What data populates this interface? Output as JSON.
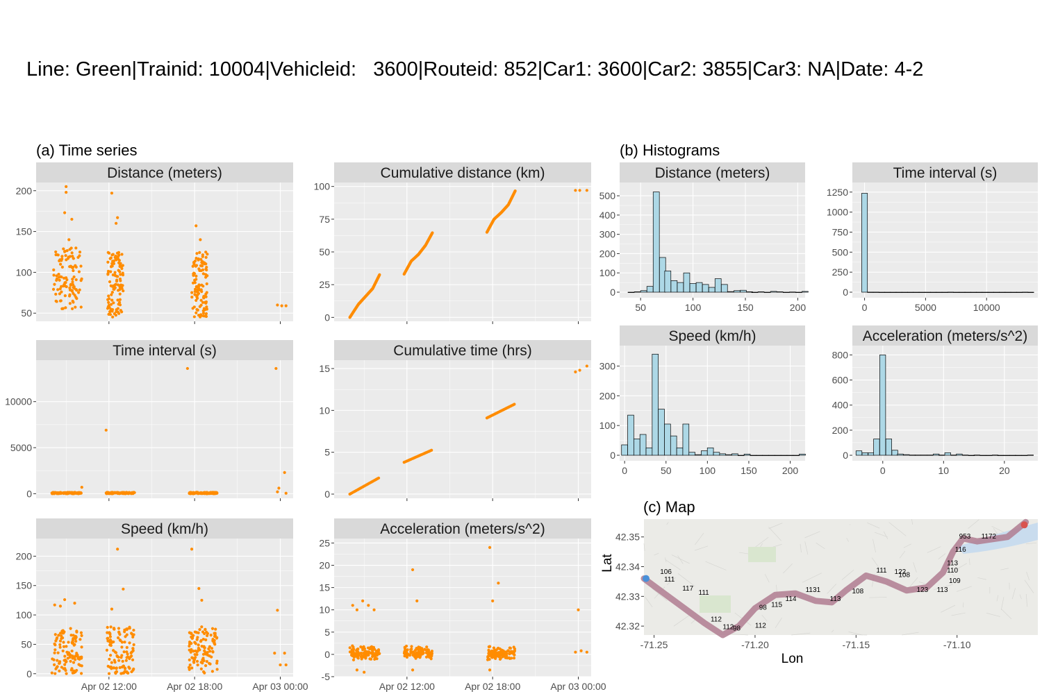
{
  "figure": {
    "title": "Line: Green|Trainid: 10004|Vehicleid:   3600|Routeid: 852|Car1: 3600|Car2: 3855|Car3: NA|Date: 4-2",
    "section_a": "(a) Time series",
    "section_b": "(b) Histograms",
    "section_c": "(c) Map"
  },
  "colors": {
    "points": "#FF8C00",
    "bars": "#ADD8E6",
    "panel_bg": "#EBEBEB",
    "strip_bg": "#D9D9D9",
    "route": "#B07C91",
    "start": "#4A90D9",
    "end": "#D9534F"
  },
  "chart_data": [
    {
      "type": "scatter",
      "title": "Distance (meters)",
      "x_ticks": [
        "Apr 02 12:00",
        "Apr 02 18:00",
        "Apr 03 00:00"
      ],
      "ylim": [
        40,
        210
      ],
      "y_ticks": [
        50,
        100,
        150,
        200
      ],
      "x_unit": "hours since Apr 02 00:00",
      "clusters": [
        {
          "x": [
            8.1,
            10.1
          ],
          "y": [
            55,
            130
          ]
        },
        {
          "x": [
            11.9,
            13.0
          ],
          "y": [
            45,
            125
          ]
        },
        {
          "x": [
            17.8,
            18.9
          ],
          "y": [
            45,
            125
          ]
        }
      ],
      "outliers": [
        [
          9.0,
          205
        ],
        [
          9.0,
          198
        ],
        [
          8.9,
          173
        ],
        [
          9.4,
          165
        ],
        [
          9.2,
          140
        ],
        [
          12.2,
          197
        ],
        [
          12.6,
          167
        ],
        [
          12.5,
          160
        ],
        [
          18.1,
          157
        ],
        [
          18.4,
          140
        ],
        [
          23.8,
          60
        ],
        [
          24.1,
          59
        ],
        [
          24.4,
          59
        ]
      ]
    },
    {
      "type": "scatter",
      "title": "Cumulative distance (km)",
      "x_ticks": [
        "Apr 02 12:00",
        "Apr 02 18:00",
        "Apr 03 00:00"
      ],
      "ylim": [
        -3,
        103
      ],
      "y_ticks": [
        0,
        25,
        50,
        75,
        100
      ],
      "x_unit": "hours since Apr 02 00:00",
      "segments": [
        {
          "x": [
            8.0,
            8.6,
            9.1,
            9.6,
            10.1
          ],
          "y": [
            0,
            10,
            16,
            22,
            33
          ]
        },
        {
          "x": [
            11.8,
            12.3,
            12.8,
            13.3,
            13.8
          ],
          "y": [
            33,
            43,
            48,
            55,
            65
          ]
        },
        {
          "x": [
            17.6,
            18.1,
            18.6,
            19.1,
            19.6
          ],
          "y": [
            65,
            75,
            80,
            86,
            97
          ]
        }
      ],
      "outliers": [
        [
          23.8,
          97
        ],
        [
          24.1,
          97
        ],
        [
          24.6,
          97
        ]
      ]
    },
    {
      "type": "scatter",
      "title": "Time interval (s)",
      "x_ticks": [
        "Apr 02 12:00",
        "Apr 02 18:00",
        "Apr 03 00:00"
      ],
      "ylim": [
        -500,
        14500
      ],
      "y_ticks": [
        0,
        5000,
        10000
      ],
      "x_unit": "hours since Apr 02 00:00",
      "clusters": [
        {
          "x": [
            8.0,
            10.1
          ],
          "y": [
            0,
            150
          ]
        },
        {
          "x": [
            11.8,
            13.8
          ],
          "y": [
            0,
            150
          ]
        },
        {
          "x": [
            17.6,
            19.6
          ],
          "y": [
            0,
            150
          ]
        }
      ],
      "outliers": [
        [
          11.8,
          6900
        ],
        [
          10.1,
          700
        ],
        [
          17.5,
          13600
        ],
        [
          23.7,
          13600
        ],
        [
          23.9,
          600
        ],
        [
          24.3,
          2300
        ],
        [
          23.8,
          200
        ],
        [
          24.4,
          50
        ]
      ]
    },
    {
      "type": "scatter",
      "title": "Cumulative time (hrs)",
      "x_ticks": [
        "Apr 02 12:00",
        "Apr 02 18:00",
        "Apr 03 00:00"
      ],
      "ylim": [
        -0.5,
        16
      ],
      "y_ticks": [
        0,
        5,
        10,
        15
      ],
      "x_unit": "hours since Apr 02 00:00",
      "segments": [
        {
          "x": [
            8.0,
            10.1
          ],
          "y": [
            0.0,
            2.0
          ]
        },
        {
          "x": [
            11.8,
            13.8
          ],
          "y": [
            3.8,
            5.3
          ]
        },
        {
          "x": [
            17.6,
            19.6
          ],
          "y": [
            9.1,
            10.8
          ]
        }
      ],
      "outliers": [
        [
          23.8,
          14.6
        ],
        [
          24.1,
          14.8
        ],
        [
          24.6,
          15.3
        ]
      ]
    },
    {
      "type": "scatter",
      "title": "Speed (km/h)",
      "x_ticks": [
        "Apr 02 12:00",
        "Apr 02 18:00",
        "Apr 03 00:00"
      ],
      "ylim": [
        -5,
        230
      ],
      "y_ticks": [
        0,
        50,
        100,
        150,
        200
      ],
      "x_unit": "hours since Apr 02 00:00",
      "clusters": [
        {
          "x": [
            8.0,
            10.1
          ],
          "y": [
            0,
            80
          ]
        },
        {
          "x": [
            11.8,
            13.8
          ],
          "y": [
            0,
            80
          ]
        },
        {
          "x": [
            17.6,
            19.6
          ],
          "y": [
            0,
            80
          ]
        }
      ],
      "outliers": [
        [
          8.2,
          117
        ],
        [
          8.6,
          115
        ],
        [
          8.9,
          126
        ],
        [
          9.6,
          120
        ],
        [
          12.2,
          110
        ],
        [
          12.6,
          212
        ],
        [
          13.0,
          144
        ],
        [
          17.8,
          212
        ],
        [
          18.3,
          145
        ],
        [
          18.5,
          125
        ],
        [
          23.8,
          108
        ],
        [
          23.6,
          35
        ],
        [
          24.3,
          35
        ],
        [
          24.0,
          15
        ],
        [
          24.4,
          15
        ]
      ]
    },
    {
      "type": "scatter",
      "title": "Acceleration (meters/s^2)",
      "x_ticks": [
        "Apr 02 12:00",
        "Apr 02 18:00",
        "Apr 03 00:00"
      ],
      "ylim": [
        -5,
        26
      ],
      "y_ticks": [
        -5,
        0,
        5,
        10,
        15,
        20,
        25
      ],
      "x_unit": "hours since Apr 02 00:00",
      "clusters": [
        {
          "x": [
            8.0,
            10.1
          ],
          "y": [
            -1.5,
            2
          ]
        },
        {
          "x": [
            11.8,
            13.8
          ],
          "y": [
            -1.5,
            2
          ]
        },
        {
          "x": [
            17.6,
            19.6
          ],
          "y": [
            -1.5,
            2
          ]
        }
      ],
      "outliers": [
        [
          8.2,
          11
        ],
        [
          8.5,
          10
        ],
        [
          8.9,
          12
        ],
        [
          9.3,
          11
        ],
        [
          9.7,
          10
        ],
        [
          12.4,
          19
        ],
        [
          12.7,
          12
        ],
        [
          17.8,
          24
        ],
        [
          18.4,
          16
        ],
        [
          18.0,
          12
        ],
        [
          24.0,
          10
        ],
        [
          8.5,
          -3.5
        ],
        [
          9.0,
          -4
        ],
        [
          12.4,
          -3.5
        ],
        [
          17.8,
          -3.5
        ],
        [
          23.8,
          0.5
        ],
        [
          24.2,
          0.8
        ],
        [
          24.6,
          0.5
        ]
      ]
    },
    {
      "type": "bar",
      "title": "Distance (meters)",
      "xlim": [
        30,
        207
      ],
      "ylim": [
        0,
        540
      ],
      "x_ticks": [
        50,
        100,
        150,
        200
      ],
      "y_ticks": [
        0,
        100,
        200,
        300,
        400,
        500
      ],
      "bin_width": 5.9,
      "bin_left": [
        38,
        44,
        50,
        56,
        62,
        68,
        73,
        79,
        85,
        91,
        97,
        103,
        109,
        115,
        121,
        127,
        133,
        139,
        145,
        151,
        156,
        162,
        168,
        174,
        180,
        186,
        192,
        198,
        204
      ],
      "counts": [
        0,
        2,
        8,
        30,
        520,
        180,
        110,
        60,
        50,
        100,
        45,
        50,
        40,
        25,
        70,
        40,
        3,
        8,
        10,
        2,
        0,
        2,
        0,
        4,
        2,
        0,
        1,
        0,
        4
      ]
    },
    {
      "type": "bar",
      "title": "Time interval (s)",
      "xlim": [
        -1000,
        14200
      ],
      "ylim": [
        0,
        1300
      ],
      "x_ticks": [
        0,
        5000,
        10000
      ],
      "y_ticks": [
        0,
        250,
        500,
        750,
        1000,
        1250
      ],
      "bin_width": 470,
      "bin_left": [
        -235,
        235,
        705,
        1175,
        1645,
        2115,
        2585,
        3055,
        3525,
        3995,
        4465,
        4935,
        5405,
        5875,
        6345,
        6815,
        7285,
        7755,
        8225,
        8695,
        9165,
        9635,
        10105,
        10575,
        11045,
        11515,
        11985,
        12455,
        12925,
        13395
      ],
      "counts": [
        1235,
        1,
        1,
        0,
        0,
        0,
        0,
        0,
        0,
        0,
        0,
        0,
        0,
        0,
        0,
        1,
        0,
        0,
        0,
        0,
        0,
        0,
        0,
        0,
        0,
        0,
        0,
        0,
        1,
        0
      ]
    },
    {
      "type": "bar",
      "title": "Speed (km/h)",
      "xlim": [
        -6,
        218
      ],
      "ylim": [
        0,
        350
      ],
      "x_ticks": [
        0,
        50,
        100,
        150,
        200
      ],
      "y_ticks": [
        0,
        100,
        200,
        300
      ],
      "bin_width": 7.4,
      "bin_left": [
        -3.7,
        3.7,
        11.1,
        18.5,
        25.9,
        33.3,
        40.7,
        48.1,
        55.5,
        62.9,
        70.3,
        77.7,
        85.1,
        92.5,
        99.9,
        107.3,
        114.7,
        122.1,
        129.5,
        136.9,
        144.3,
        151.7,
        159.1,
        166.5,
        173.9,
        181.3,
        188.7,
        196.1,
        203.5,
        210.9
      ],
      "counts": [
        35,
        135,
        55,
        70,
        25,
        340,
        155,
        105,
        65,
        25,
        105,
        10,
        2,
        15,
        25,
        10,
        5,
        2,
        5,
        0,
        4,
        0,
        0,
        0,
        0,
        0,
        0,
        0,
        0,
        4
      ]
    },
    {
      "type": "bar",
      "title": "Acceleration (meters/s^2)",
      "xlim": [
        -5,
        25.5
      ],
      "ylim": [
        0,
        830
      ],
      "x_ticks": [
        0,
        10,
        20
      ],
      "y_ticks": [
        0,
        200,
        400,
        600,
        800
      ],
      "bin_width": 0.97,
      "bin_left": [
        -4.4,
        -3.4,
        -2.4,
        -1.5,
        -0.5,
        0.5,
        1.5,
        2.4,
        3.4,
        4.4,
        5.3,
        6.3,
        7.3,
        8.3,
        9.2,
        10.2,
        11.2,
        12.1,
        13.1,
        14.1,
        15.0,
        16.0,
        17.0,
        18.0,
        18.9,
        19.9,
        20.9,
        21.8,
        22.8,
        23.8
      ],
      "counts": [
        35,
        20,
        20,
        130,
        800,
        130,
        40,
        10,
        5,
        2,
        2,
        2,
        2,
        10,
        2,
        20,
        2,
        10,
        2,
        0,
        2,
        0,
        0,
        2,
        0,
        0,
        0,
        0,
        0,
        2
      ]
    },
    {
      "type": "scatter",
      "title": "",
      "xlabel": "Lon",
      "ylabel": "Lat",
      "xlim": [
        -71.255,
        -71.06
      ],
      "ylim": [
        42.317,
        42.356
      ],
      "x_ticks": [
        -71.25,
        -71.2,
        -71.15,
        -71.1
      ],
      "y_ticks": [
        42.32,
        42.33,
        42.34,
        42.35
      ],
      "route": [
        [
          -71.255,
          42.336
        ],
        [
          -71.245,
          42.331
        ],
        [
          -71.235,
          42.326
        ],
        [
          -71.225,
          42.321
        ],
        [
          -71.216,
          42.317
        ],
        [
          -71.208,
          42.32
        ],
        [
          -71.2,
          42.326
        ],
        [
          -71.19,
          42.3305
        ],
        [
          -71.18,
          42.331
        ],
        [
          -71.17,
          42.3285
        ],
        [
          -71.162,
          42.328
        ],
        [
          -71.155,
          42.332
        ],
        [
          -71.145,
          42.337
        ],
        [
          -71.135,
          42.335
        ],
        [
          -71.125,
          42.332
        ],
        [
          -71.115,
          42.333
        ],
        [
          -71.107,
          42.338
        ],
        [
          -71.102,
          42.345
        ],
        [
          -71.097,
          42.3495
        ],
        [
          -71.09,
          42.3485
        ],
        [
          -71.075,
          42.35
        ],
        [
          -71.066,
          42.355
        ]
      ],
      "labels": [
        {
          "lon": -71.247,
          "lat": 42.3375,
          "text": "106"
        },
        {
          "lon": -71.245,
          "lat": 42.335,
          "text": "111"
        },
        {
          "lon": -71.236,
          "lat": 42.332,
          "text": "117"
        },
        {
          "lon": -71.228,
          "lat": 42.3305,
          "text": "111"
        },
        {
          "lon": -71.222,
          "lat": 42.3215,
          "text": "112"
        },
        {
          "lon": -71.216,
          "lat": 42.319,
          "text": "112"
        },
        {
          "lon": -71.211,
          "lat": 42.3185,
          "text": "98"
        },
        {
          "lon": -71.2,
          "lat": 42.3195,
          "text": "112"
        },
        {
          "lon": -71.198,
          "lat": 42.3255,
          "text": "98"
        },
        {
          "lon": -71.192,
          "lat": 42.3265,
          "text": "115"
        },
        {
          "lon": -71.185,
          "lat": 42.3285,
          "text": "114"
        },
        {
          "lon": -71.175,
          "lat": 42.3315,
          "text": "1131"
        },
        {
          "lon": -71.163,
          "lat": 42.3285,
          "text": "113"
        },
        {
          "lon": -71.152,
          "lat": 42.331,
          "text": "108"
        },
        {
          "lon": -71.14,
          "lat": 42.338,
          "text": "111"
        },
        {
          "lon": -71.131,
          "lat": 42.3375,
          "text": "122"
        },
        {
          "lon": -71.129,
          "lat": 42.3365,
          "text": "108"
        },
        {
          "lon": -71.12,
          "lat": 42.3315,
          "text": "123"
        },
        {
          "lon": -71.11,
          "lat": 42.3315,
          "text": "113"
        },
        {
          "lon": -71.104,
          "lat": 42.3345,
          "text": "109"
        },
        {
          "lon": -71.105,
          "lat": 42.338,
          "text": "110"
        },
        {
          "lon": -71.105,
          "lat": 42.3405,
          "text": "113"
        },
        {
          "lon": -71.101,
          "lat": 42.345,
          "text": "116"
        },
        {
          "lon": -71.099,
          "lat": 42.3495,
          "text": "953"
        },
        {
          "lon": -71.088,
          "lat": 42.3495,
          "text": "1172"
        }
      ]
    }
  ]
}
